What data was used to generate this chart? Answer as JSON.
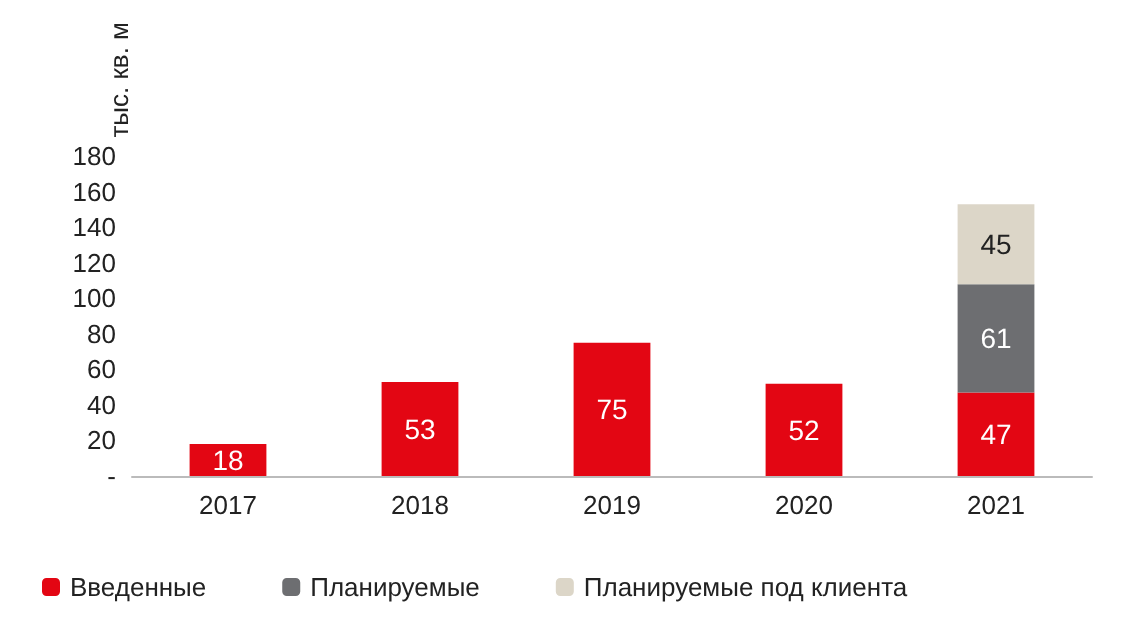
{
  "chart_data": {
    "type": "bar",
    "stacked": true,
    "ylabel": "тыс. кв. м",
    "categories": [
      "2017",
      "2018",
      "2019",
      "2020",
      "2021"
    ],
    "series": [
      {
        "name": "Введенные",
        "color": "#e30613",
        "values": [
          18,
          53,
          75,
          52,
          47
        ]
      },
      {
        "name": "Планируемые",
        "color": "#6d6e71",
        "values": [
          null,
          null,
          null,
          null,
          61
        ]
      },
      {
        "name": "Планируемые под клиента",
        "color": "#dcd6c8",
        "values": [
          null,
          null,
          null,
          null,
          45
        ]
      }
    ],
    "ylim": [
      0,
      180
    ],
    "yticks": [
      {
        "value": 0,
        "label": "-"
      },
      20,
      40,
      60,
      80,
      100,
      120,
      140,
      160,
      180
    ],
    "grid": false,
    "legend": "bottom",
    "data_labels": true
  }
}
